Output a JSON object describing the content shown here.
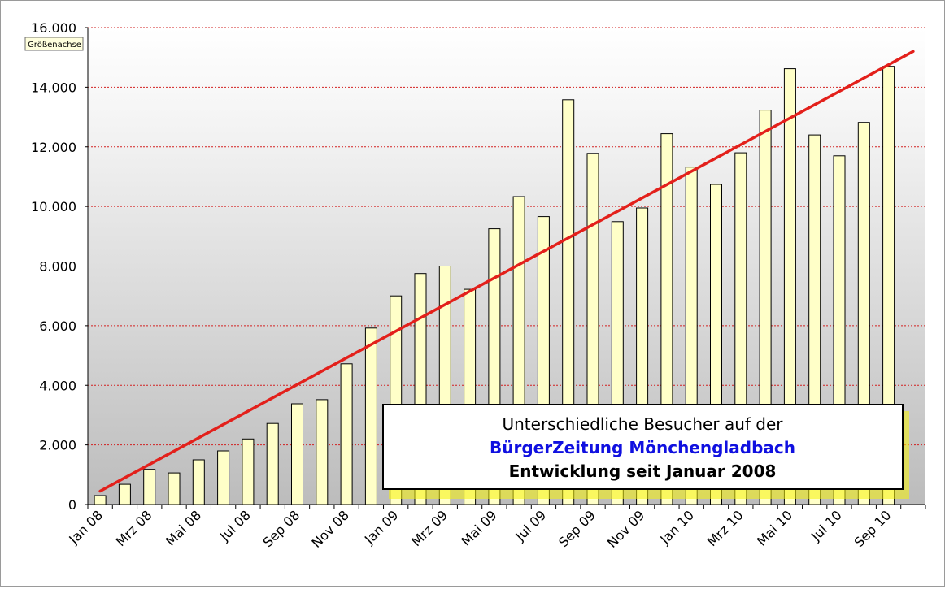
{
  "chart_data": {
    "type": "bar",
    "categories": [
      "Jan 08",
      "Feb 08",
      "Mrz 08",
      "Apr 08",
      "Mai 08",
      "Jun 08",
      "Jul 08",
      "Aug 08",
      "Sep 08",
      "Okt 08",
      "Nov 08",
      "Dez 08",
      "Jan 09",
      "Feb 09",
      "Mrz 09",
      "Apr 09",
      "Mai 09",
      "Jun 09",
      "Jul 09",
      "Aug 09",
      "Sep 09",
      "Okt 09",
      "Nov 09",
      "Dez 09",
      "Jan 10",
      "Feb 10",
      "Mrz 10",
      "Apr 10",
      "Mai 10",
      "Jun 10",
      "Jul 10",
      "Aug 10",
      "Sep 10",
      "Okt 10"
    ],
    "x_tick_labels": [
      "Jan 08",
      "Mrz 08",
      "Mai 08",
      "Jul 08",
      "Sep 08",
      "Nov 08",
      "Jan 09",
      "Mrz 09",
      "Mai 09",
      "Jul 09",
      "Sep 09",
      "Nov 09",
      "Jan 10",
      "Mrz 10",
      "Mai 10",
      "Jul 10",
      "Sep 10"
    ],
    "values": [
      300,
      680,
      1180,
      1060,
      1500,
      1800,
      2200,
      2720,
      3380,
      3520,
      4720,
      5920,
      7000,
      7750,
      8000,
      7220,
      9250,
      10330,
      9660,
      13580,
      11780,
      9490,
      9950,
      12440,
      11320,
      10740,
      11800,
      13230,
      14620,
      12400,
      11700,
      12820,
      14700,
      null
    ],
    "trendline": {
      "start": 450,
      "end": 15200
    },
    "ylim": [
      0,
      16000
    ],
    "y_ticks": [
      "0",
      "2.000",
      "4.000",
      "6.000",
      "8.000",
      "10.000",
      "12.000",
      "14.000",
      "16.000"
    ],
    "axis_tag": "Größenachse",
    "grid": true,
    "colors": {
      "bar_fill": "#ffffc8",
      "bar_stroke": "#000000",
      "trend": "#e3201b",
      "grid": "#d22020",
      "title_blue": "#1010e0"
    },
    "annotation": {
      "line1": "Unterschiedliche Besucher auf der",
      "line2": "BürgerZeitung Mönchengladbach",
      "line3": "Entwicklung seit Januar 2008"
    }
  }
}
